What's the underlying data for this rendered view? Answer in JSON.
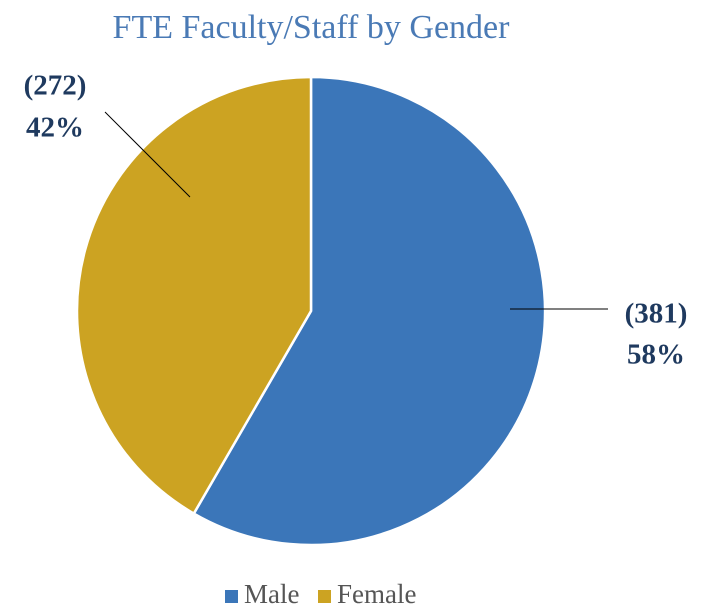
{
  "chart_data": {
    "type": "pie",
    "title": "FTE Faculty/Staff by Gender",
    "categories": [
      "Male",
      "Female"
    ],
    "series": [
      {
        "name": "Male",
        "color": "#3b76b9"
      },
      {
        "name": "Female",
        "color": "#cca322"
      }
    ],
    "values": [
      381,
      272
    ],
    "value_labels": [
      "(381)",
      "(272)"
    ],
    "percents": [
      58,
      42
    ],
    "percent_labels": [
      "58%",
      "42%"
    ]
  }
}
